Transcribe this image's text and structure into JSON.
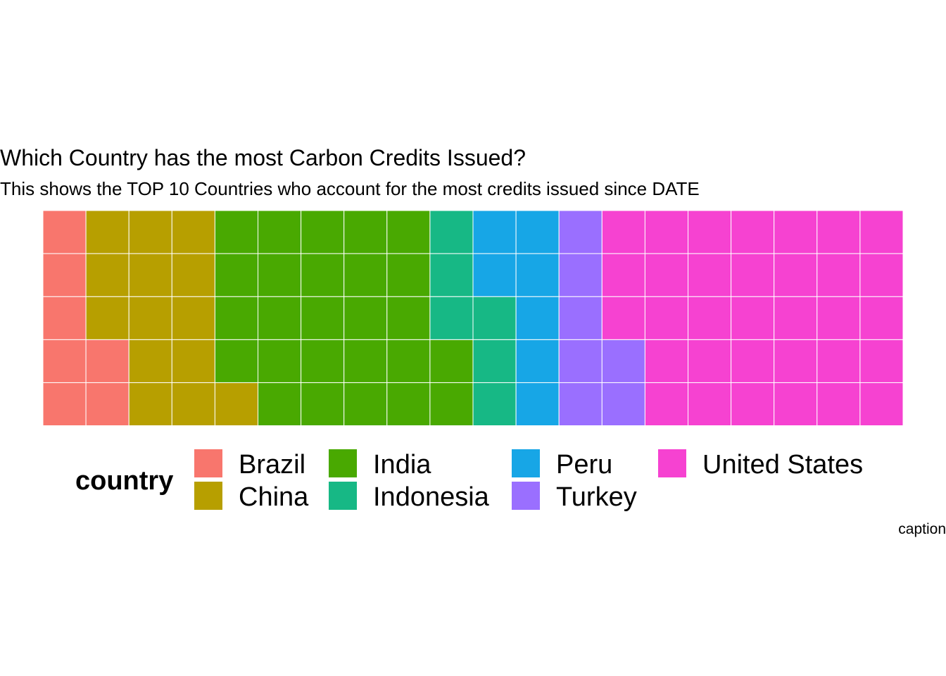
{
  "chart_data": {
    "type": "waffle",
    "title": "Which Country has the most Carbon Credits Issued?",
    "subtitle": "This shows the TOP 10 Countries who account for the most credits issued since DATE",
    "caption": "caption",
    "grid": {
      "rows": 5,
      "columns": 20,
      "fill_order": "column-major, bottom to top"
    },
    "legend": {
      "title": "country",
      "position": "bottom"
    },
    "series": [
      {
        "name": "Brazil",
        "squares": 7,
        "color": "#F8766D"
      },
      {
        "name": "China",
        "squares": 14,
        "color": "#B79F00"
      },
      {
        "name": "India",
        "squares": 26,
        "color": "#49A901"
      },
      {
        "name": "Indonesia",
        "squares": 6,
        "color": "#17B885"
      },
      {
        "name": "Peru",
        "squares": 7,
        "color": "#17A6E6"
      },
      {
        "name": "Turkey",
        "squares": 7,
        "color": "#9A6FFF"
      },
      {
        "name": "United States",
        "squares": 33,
        "color": "#F642D1"
      }
    ]
  }
}
